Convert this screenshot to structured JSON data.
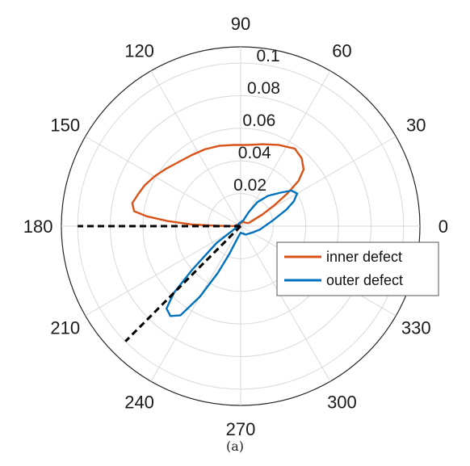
{
  "chart_data": {
    "type": "polar-line",
    "caption": "(a)",
    "radial_ticks": [
      0.02,
      0.04,
      0.06,
      0.08,
      0.1
    ],
    "radial_tick_labels": [
      "0.02",
      "0.04",
      "0.06",
      "0.08",
      "0.1"
    ],
    "rlim": [
      0,
      0.11
    ],
    "angular_ticks": [
      0,
      30,
      60,
      90,
      120,
      150,
      180,
      210,
      240,
      270,
      300,
      330
    ],
    "angular_tick_labels": [
      "0",
      "30",
      "60",
      "90",
      "120",
      "150",
      "180",
      "210",
      "240",
      "270",
      "300",
      "330"
    ],
    "grid": true,
    "legend_position": "right",
    "series": [
      {
        "name": "inner defect",
        "color": "#d95319",
        "points": [
          [
            20,
            0.005
          ],
          [
            28,
            0.015
          ],
          [
            32,
            0.025
          ],
          [
            35,
            0.035
          ],
          [
            38,
            0.045
          ],
          [
            42,
            0.052
          ],
          [
            48,
            0.056
          ],
          [
            55,
            0.058
          ],
          [
            65,
            0.055
          ],
          [
            75,
            0.052
          ],
          [
            85,
            0.05
          ],
          [
            95,
            0.05
          ],
          [
            105,
            0.051
          ],
          [
            115,
            0.052
          ],
          [
            125,
            0.053
          ],
          [
            135,
            0.055
          ],
          [
            143,
            0.058
          ],
          [
            150,
            0.061
          ],
          [
            157,
            0.064
          ],
          [
            163,
            0.066
          ],
          [
            168,
            0.068
          ],
          [
            172,
            0.066
          ],
          [
            174,
            0.058
          ],
          [
            176,
            0.045
          ],
          [
            178,
            0.03
          ],
          [
            179,
            0.015
          ],
          [
            179,
            0.004
          ],
          [
            150,
            0.002
          ],
          [
            60,
            0.003
          ],
          [
            20,
            0.005
          ]
        ]
      },
      {
        "name": "outer defect",
        "color": "#0072bd",
        "points": [
          [
            200,
            0.003
          ],
          [
            215,
            0.018
          ],
          [
            222,
            0.04
          ],
          [
            225,
            0.058
          ],
          [
            228,
            0.068
          ],
          [
            232,
            0.07
          ],
          [
            236,
            0.066
          ],
          [
            240,
            0.05
          ],
          [
            244,
            0.032
          ],
          [
            248,
            0.018
          ],
          [
            255,
            0.008
          ],
          [
            270,
            0.004
          ],
          [
            300,
            0.006
          ],
          [
            330,
            0.008
          ],
          [
            350,
            0.012
          ],
          [
            10,
            0.02
          ],
          [
            20,
            0.03
          ],
          [
            25,
            0.036
          ],
          [
            30,
            0.04
          ],
          [
            35,
            0.038
          ],
          [
            40,
            0.032
          ],
          [
            48,
            0.025
          ],
          [
            55,
            0.018
          ],
          [
            60,
            0.01
          ],
          [
            65,
            0.004
          ],
          [
            120,
            0.002
          ],
          [
            200,
            0.003
          ]
        ]
      }
    ],
    "reference_lines": [
      {
        "angle": 180,
        "r": 0.1,
        "style": "dashed",
        "color": "#000000"
      },
      {
        "angle": 225,
        "r": 0.1,
        "style": "dashed",
        "color": "#000000"
      }
    ]
  }
}
